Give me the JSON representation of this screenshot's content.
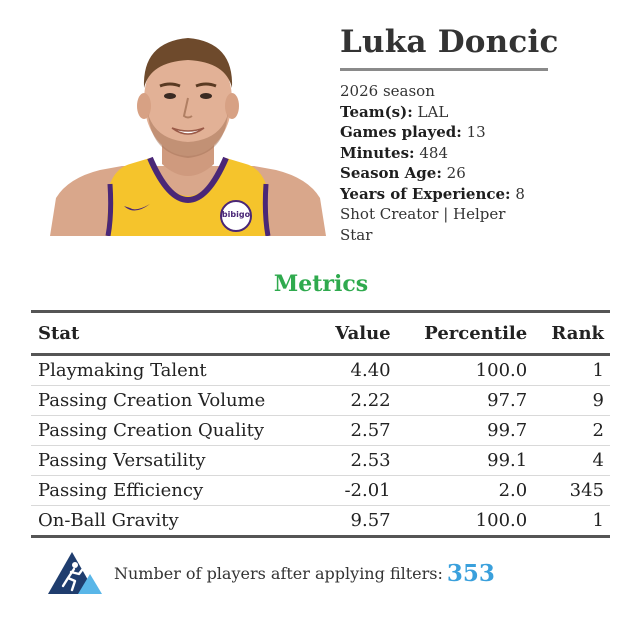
{
  "player": {
    "name": "Luka Doncic",
    "season": "2026 season",
    "team_label": "Team(s):",
    "team_value": "LAL",
    "games_label": "Games played:",
    "games_value": "13",
    "minutes_label": "Minutes:",
    "minutes_value": "484",
    "age_label": "Season Age:",
    "age_value": "26",
    "experience_label": "Years of Experience:",
    "experience_value": "8",
    "archetype": "Shot Creator | Helper",
    "tier": "Star",
    "jersey_sponsor": "bibigo",
    "jersey_color": "#f5c42c",
    "jersey_trim": "#4a2777"
  },
  "metrics": {
    "title": "Metrics",
    "title_color": "#2faa4e",
    "columns": {
      "stat": "Stat",
      "value": "Value",
      "percentile": "Percentile",
      "rank": "Rank"
    },
    "rows": [
      {
        "stat": "Playmaking Talent",
        "value": "4.40",
        "percentile": "100.0",
        "rank": "1"
      },
      {
        "stat": "Passing Creation Volume",
        "value": "2.22",
        "percentile": "97.7",
        "rank": "9"
      },
      {
        "stat": "Passing Creation Quality",
        "value": "2.57",
        "percentile": "99.7",
        "rank": "2"
      },
      {
        "stat": "Passing Versatility",
        "value": "2.53",
        "percentile": "99.1",
        "rank": "4"
      },
      {
        "stat": "Passing Efficiency",
        "value": "-2.01",
        "percentile": "2.0",
        "rank": "345"
      },
      {
        "stat": "On-Ball Gravity",
        "value": "9.57",
        "percentile": "100.0",
        "rank": "1"
      }
    ]
  },
  "footer": {
    "text": "Number of players after applying filters:",
    "count": "353",
    "count_color": "#3aa0dc",
    "logo_icon": "basketball-player-triangle-logo"
  }
}
